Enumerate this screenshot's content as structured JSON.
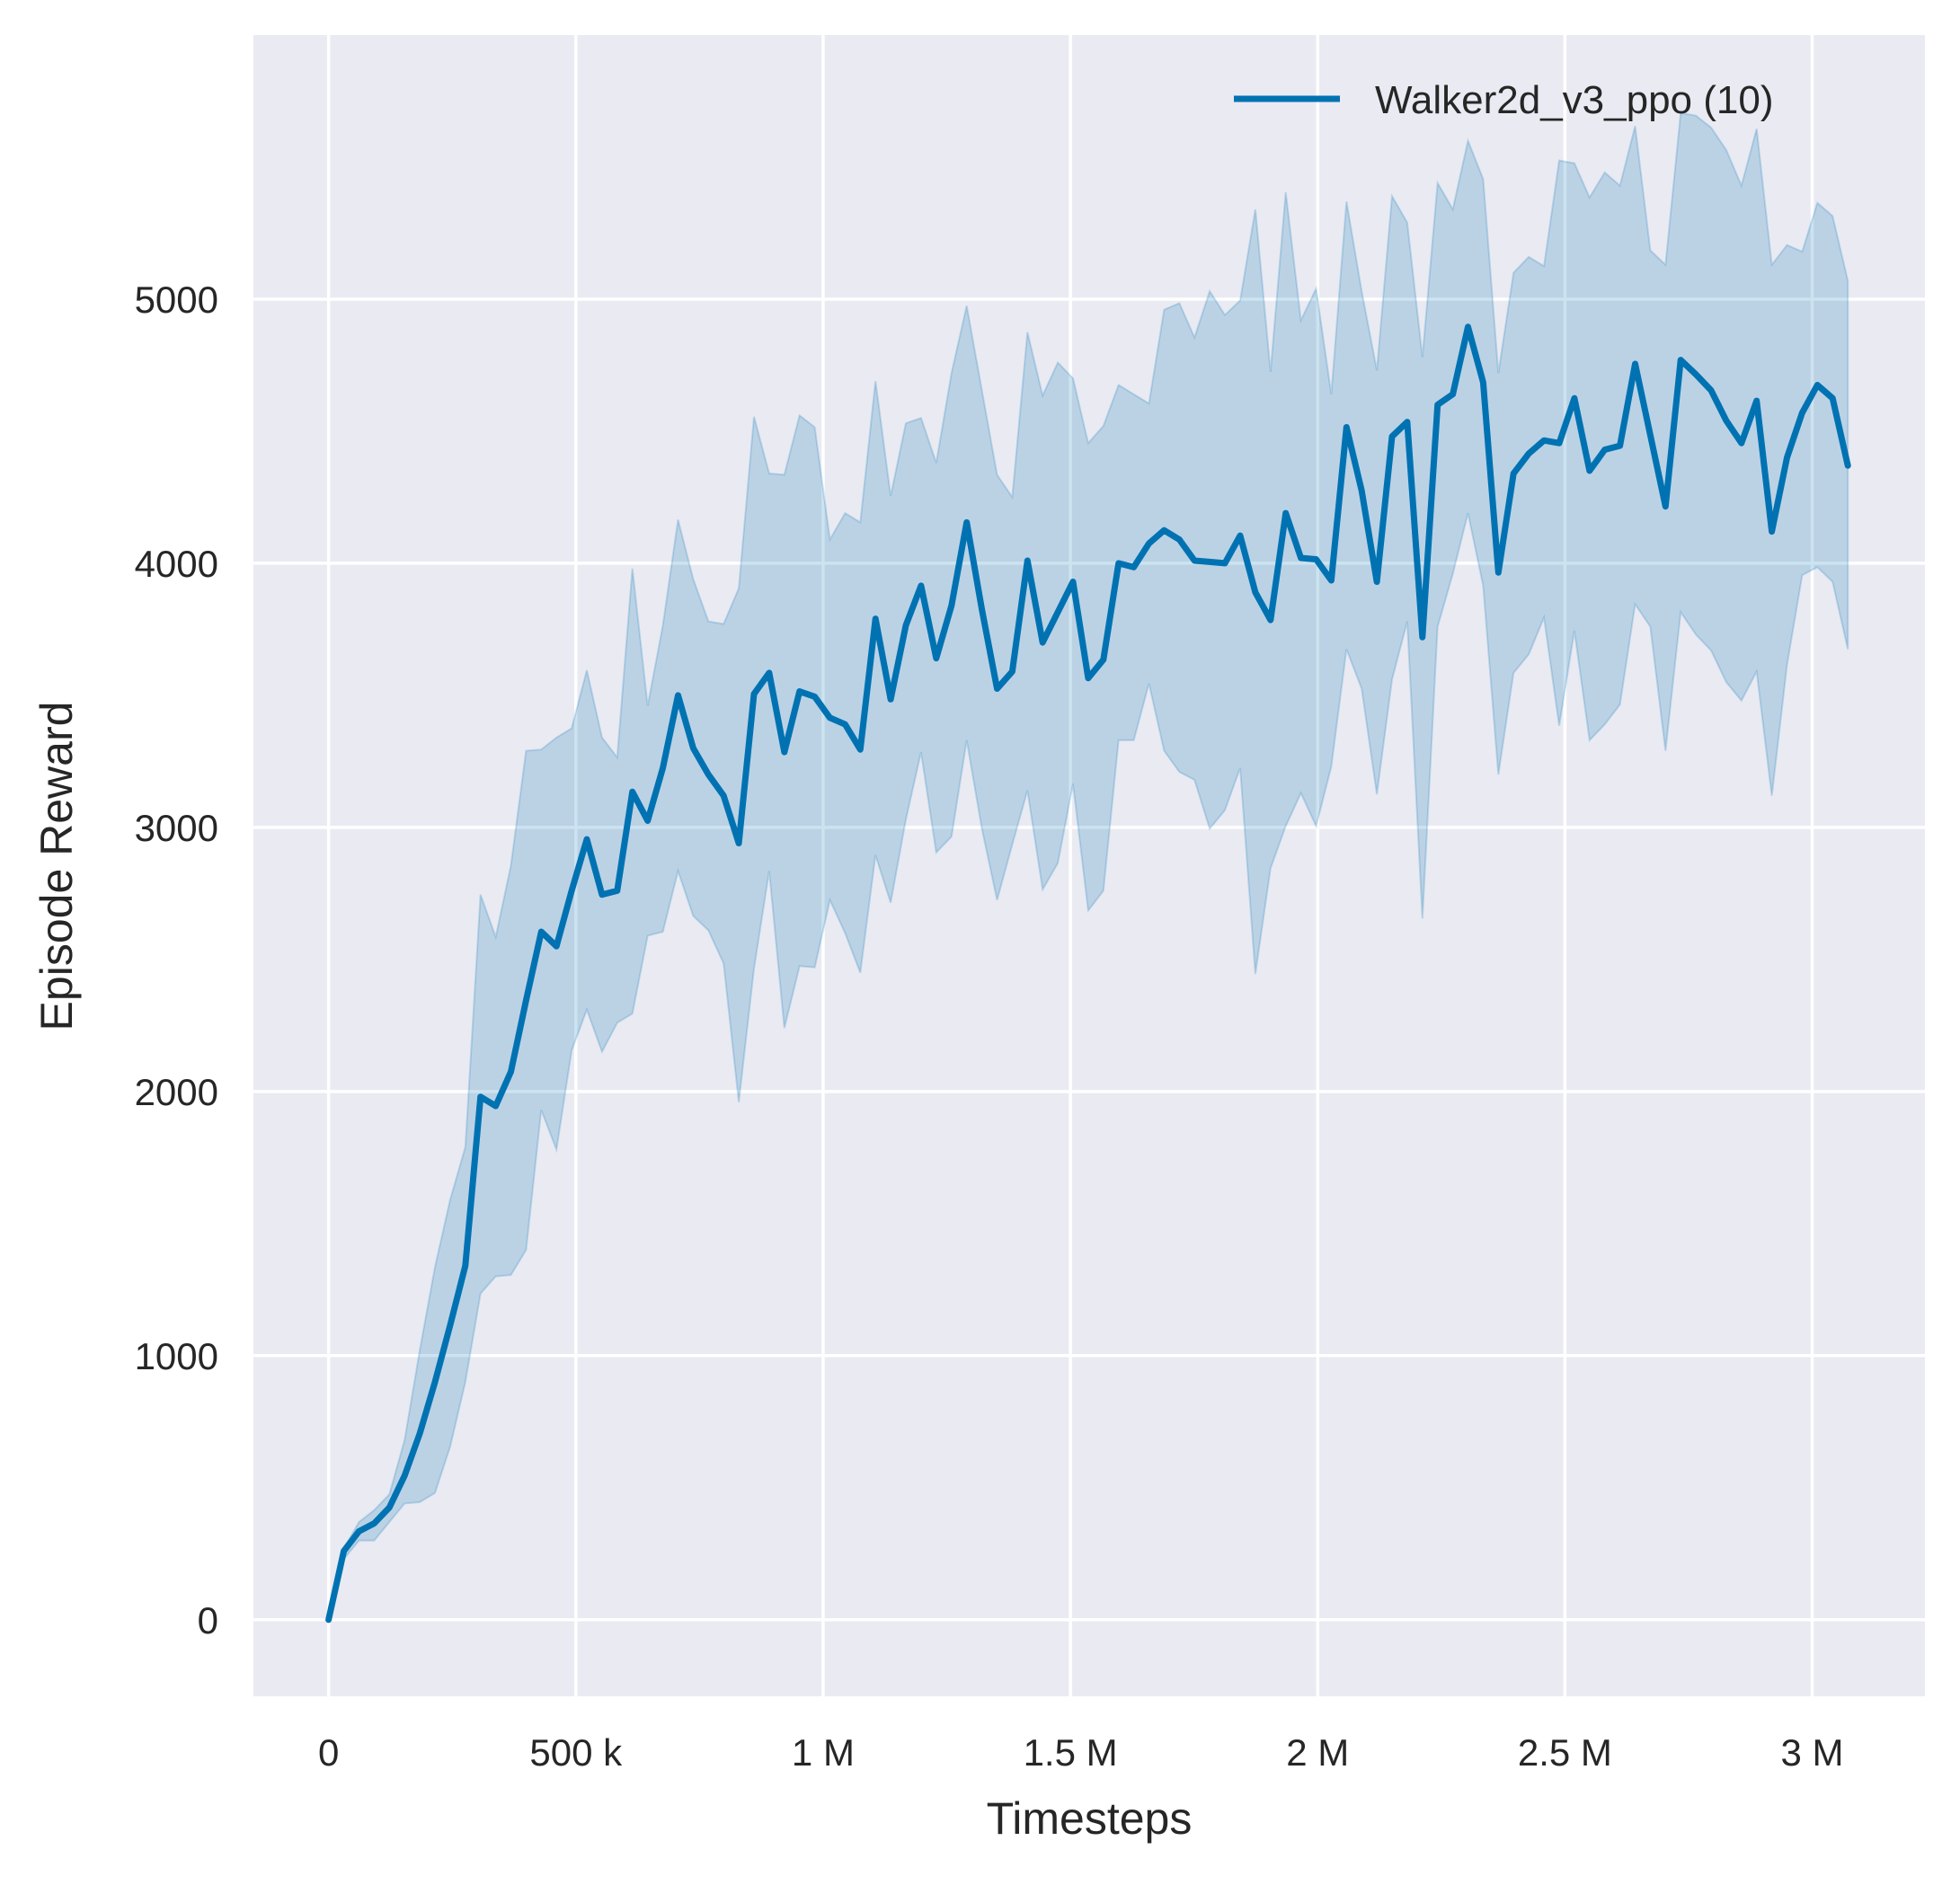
{
  "chart_data": {
    "type": "line",
    "title": "",
    "xlabel": "Timesteps",
    "ylabel": "Episode Reward",
    "xlim": [
      -152000,
      3228000
    ],
    "ylim": [
      -290,
      6000
    ],
    "grid": true,
    "background_color": "#EAEAF2",
    "grid_color": "#FFFFFF",
    "legend_position": "top-right",
    "x_ticks": [
      0,
      500000,
      1000000,
      1500000,
      2000000,
      2500000,
      3000000
    ],
    "x_tick_labels": [
      "0",
      "500 k",
      "1 M",
      "1.5 M",
      "2 M",
      "2.5 M",
      "3 M"
    ],
    "y_ticks": [
      0,
      1000,
      2000,
      3000,
      4000,
      5000
    ],
    "y_tick_labels": [
      "0",
      "1000",
      "2000",
      "3000",
      "4000",
      "5000"
    ],
    "series": [
      {
        "name": "Walker2d_v3_ppo (10)",
        "color": "#0072B2",
        "x": [
          0,
          30720,
          61440,
          92160,
          122880,
          153600,
          184320,
          215040,
          245760,
          276480,
          307200,
          337920,
          368640,
          399360,
          430080,
          460800,
          491520,
          522240,
          552960,
          583680,
          614400,
          645120,
          675840,
          706560,
          737280,
          768000,
          798720,
          829440,
          860160,
          890880,
          921600,
          952320,
          983040,
          1013760,
          1044480,
          1075200,
          1105920,
          1136640,
          1167360,
          1198080,
          1228800,
          1259520,
          1290240,
          1320960,
          1351680,
          1382400,
          1413120,
          1443840,
          1474560,
          1505280,
          1536000,
          1566720,
          1597440,
          1628160,
          1658880,
          1689600,
          1720320,
          1751040,
          1781760,
          1812480,
          1843200,
          1873920,
          1904640,
          1935360,
          1966080,
          1996800,
          2027520,
          2058240,
          2088960,
          2119680,
          2150400,
          2181120,
          2211840,
          2242560,
          2273280,
          2304000,
          2334720,
          2365440,
          2396160,
          2426880,
          2457600,
          2488320,
          2519040,
          2549760,
          2580480,
          2611200,
          2641920,
          2672640,
          2703360,
          2734080,
          2764800,
          2795520,
          2826240,
          2856960,
          2887680,
          2918400,
          2949120,
          2979840,
          3010560,
          3041280,
          3072000
        ],
        "mean": [
          0,
          260,
          335,
          365,
          425,
          545,
          705,
          900,
          1115,
          1340,
          1980,
          1945,
          2075,
          2345,
          2605,
          2550,
          2760,
          2955,
          2745,
          2760,
          3135,
          3025,
          3225,
          3500,
          3300,
          3200,
          3120,
          2940,
          3505,
          3585,
          3285,
          3515,
          3495,
          3415,
          3390,
          3295,
          3790,
          3485,
          3765,
          3915,
          3640,
          3840,
          4155,
          3825,
          3525,
          3590,
          4010,
          3700,
          3815,
          3930,
          3565,
          3635,
          4000,
          3985,
          4075,
          4125,
          4090,
          4010,
          4005,
          4000,
          4105,
          3890,
          3785,
          4190,
          4020,
          4015,
          3935,
          4515,
          4275,
          3930,
          4480,
          4535,
          3720,
          4600,
          4640,
          4895,
          4685,
          3965,
          4340,
          4415,
          4465,
          4455,
          4625,
          4350,
          4430,
          4445,
          4755,
          4485,
          4215,
          4770,
          4715,
          4655,
          4540,
          4455,
          4615,
          4120,
          4400,
          4570,
          4675,
          4625,
          4370
        ],
        "upper": [
          0,
          270,
          370,
          415,
          475,
          680,
          1020,
          1335,
          1590,
          1790,
          2745,
          2585,
          2855,
          3290,
          3295,
          3340,
          3375,
          3595,
          3340,
          3265,
          3980,
          3460,
          3765,
          4165,
          3940,
          3780,
          3770,
          3905,
          4555,
          4340,
          4335,
          4560,
          4515,
          4090,
          4190,
          4155,
          4690,
          4255,
          4530,
          4550,
          4380,
          4720,
          4975,
          4655,
          4335,
          4250,
          4875,
          4635,
          4760,
          4700,
          4455,
          4520,
          4675,
          4640,
          4605,
          4960,
          4985,
          4855,
          5030,
          4940,
          4995,
          5340,
          4725,
          5405,
          4920,
          5040,
          4640,
          5370,
          5030,
          4730,
          5390,
          5290,
          4780,
          5440,
          5340,
          5600,
          5455,
          4720,
          5100,
          5160,
          5125,
          5525,
          5515,
          5385,
          5480,
          5430,
          5655,
          5185,
          5130,
          5705,
          5695,
          5650,
          5565,
          5430,
          5645,
          5130,
          5205,
          5180,
          5365,
          5315,
          5070
        ],
        "lower": [
          0,
          230,
          300,
          300,
          370,
          440,
          445,
          480,
          655,
          900,
          1235,
          1300,
          1305,
          1400,
          1930,
          1780,
          2155,
          2310,
          2150,
          2260,
          2295,
          2590,
          2605,
          2835,
          2665,
          2610,
          2485,
          1960,
          2465,
          2835,
          2240,
          2475,
          2470,
          2725,
          2600,
          2450,
          2895,
          2715,
          3030,
          3285,
          2905,
          2965,
          3330,
          2995,
          2725,
          2935,
          3140,
          2765,
          2865,
          3165,
          2685,
          2760,
          3330,
          3330,
          3545,
          3290,
          3210,
          3180,
          2995,
          3065,
          3225,
          2445,
          2845,
          3005,
          3130,
          3005,
          3230,
          3675,
          3525,
          3125,
          3560,
          3780,
          2655,
          3760,
          3960,
          4190,
          3915,
          3200,
          3585,
          3655,
          3795,
          3385,
          3745,
          3330,
          3390,
          3465,
          3845,
          3760,
          3290,
          3815,
          3730,
          3670,
          3550,
          3480,
          3590,
          3120,
          3615,
          3955,
          3985,
          3930,
          3675
        ]
      }
    ]
  }
}
